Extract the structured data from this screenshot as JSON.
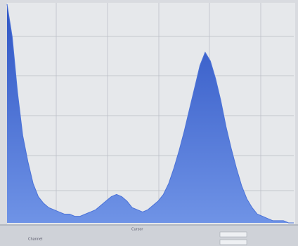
{
  "chart_data": {
    "type": "area",
    "color": "#4b72d8",
    "ylim": [
      0,
      100
    ],
    "values": [
      100,
      85,
      60,
      40,
      28,
      18,
      12,
      9,
      7,
      6,
      5,
      4,
      4,
      3,
      3,
      4,
      5,
      6,
      8,
      10,
      12,
      13,
      12,
      10,
      7,
      6,
      5,
      6,
      8,
      10,
      13,
      18,
      25,
      33,
      42,
      52,
      62,
      72,
      78,
      74,
      66,
      56,
      44,
      34,
      25,
      17,
      11,
      7,
      4,
      3,
      2,
      1,
      1,
      1,
      0,
      0
    ],
    "grid": true
  },
  "status": {
    "channel": "Channel",
    "cursor": "Cursor"
  }
}
